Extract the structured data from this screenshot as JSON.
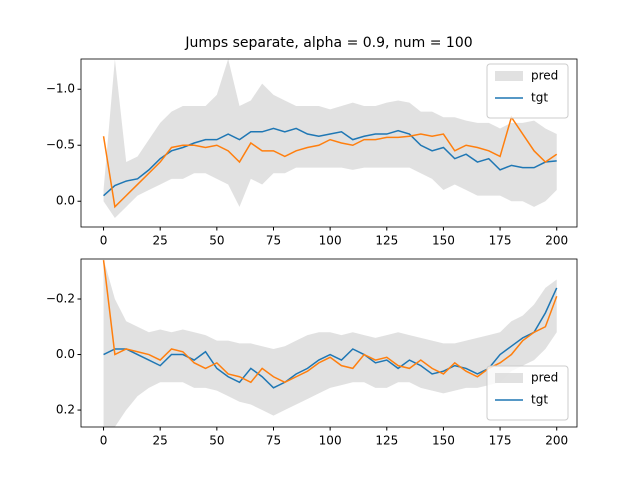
{
  "chart_data": [
    {
      "type": "line",
      "title": "Jumps separate, alpha = 0.9, num = 100",
      "invert_y": true,
      "legend": "upper right",
      "x": [
        0,
        5,
        10,
        15,
        20,
        25,
        30,
        35,
        40,
        45,
        50,
        55,
        60,
        65,
        70,
        75,
        80,
        85,
        90,
        95,
        100,
        105,
        110,
        115,
        120,
        125,
        130,
        135,
        140,
        145,
        150,
        155,
        160,
        165,
        170,
        175,
        180,
        185,
        190,
        195,
        200
      ],
      "xlim": [
        -9.95,
        208.95
      ],
      "xticks": [
        0,
        25,
        50,
        75,
        100,
        125,
        150,
        175,
        200
      ],
      "ylim": [
        -1.27,
        0.23
      ],
      "yticks": [
        {
          "value": -1.0,
          "label": "−1.0"
        },
        {
          "value": -0.5,
          "label": "−0.5"
        },
        {
          "value": 0.0,
          "label": "0.0"
        }
      ],
      "band": {
        "name": "pred",
        "color": "#d9d9d9",
        "lower": [
          -0.1,
          -1.27,
          -0.35,
          -0.4,
          -0.55,
          -0.7,
          -0.8,
          -0.85,
          -0.85,
          -0.85,
          -0.95,
          -1.27,
          -0.85,
          -0.9,
          -1.05,
          -0.95,
          -0.9,
          -0.85,
          -0.85,
          -0.85,
          -0.82,
          -0.85,
          -0.88,
          -0.85,
          -0.85,
          -0.88,
          -0.9,
          -0.88,
          -0.8,
          -0.8,
          -0.75,
          -0.75,
          -0.72,
          -0.7,
          -0.7,
          -0.65,
          -0.7,
          -0.7,
          -0.72,
          -0.65,
          -0.6
        ],
        "upper": [
          0.0,
          0.15,
          0.05,
          -0.05,
          -0.1,
          -0.15,
          -0.2,
          -0.2,
          -0.25,
          -0.25,
          -0.2,
          -0.15,
          0.05,
          -0.2,
          -0.15,
          -0.25,
          -0.25,
          -0.3,
          -0.3,
          -0.3,
          -0.3,
          -0.3,
          -0.28,
          -0.3,
          -0.3,
          -0.3,
          -0.3,
          -0.3,
          -0.25,
          -0.2,
          -0.1,
          -0.15,
          -0.1,
          -0.05,
          -0.05,
          -0.05,
          0.0,
          0.0,
          0.05,
          0.0,
          -0.1
        ]
      },
      "series": [
        {
          "name": "tgt",
          "color": "#1f77b4",
          "values": [
            -0.05,
            -0.14,
            -0.18,
            -0.2,
            -0.28,
            -0.38,
            -0.45,
            -0.48,
            -0.52,
            -0.55,
            -0.55,
            -0.6,
            -0.55,
            -0.62,
            -0.62,
            -0.65,
            -0.62,
            -0.65,
            -0.6,
            -0.58,
            -0.6,
            -0.62,
            -0.55,
            -0.58,
            -0.6,
            -0.6,
            -0.63,
            -0.6,
            -0.5,
            -0.45,
            -0.48,
            -0.38,
            -0.42,
            -0.35,
            -0.38,
            -0.28,
            -0.32,
            -0.3,
            -0.3,
            -0.35,
            -0.36
          ]
        },
        {
          "color": "#ff7f0e",
          "values": [
            -0.58,
            0.05,
            -0.05,
            -0.15,
            -0.25,
            -0.35,
            -0.48,
            -0.5,
            -0.5,
            -0.48,
            -0.5,
            -0.45,
            -0.35,
            -0.52,
            -0.45,
            -0.45,
            -0.4,
            -0.45,
            -0.48,
            -0.5,
            -0.55,
            -0.52,
            -0.5,
            -0.55,
            -0.55,
            -0.57,
            -0.57,
            -0.58,
            -0.6,
            -0.58,
            -0.6,
            -0.45,
            -0.5,
            -0.48,
            -0.45,
            -0.4,
            -0.75,
            -0.6,
            -0.45,
            -0.35,
            -0.42
          ]
        }
      ]
    },
    {
      "type": "line",
      "invert_y": true,
      "legend": "lower right",
      "x": [
        0,
        5,
        10,
        15,
        20,
        25,
        30,
        35,
        40,
        45,
        50,
        55,
        60,
        65,
        70,
        75,
        80,
        85,
        90,
        95,
        100,
        105,
        110,
        115,
        120,
        125,
        130,
        135,
        140,
        145,
        150,
        155,
        160,
        165,
        170,
        175,
        180,
        185,
        190,
        195,
        200
      ],
      "xlim": [
        -9.95,
        208.95
      ],
      "xticks": [
        0,
        25,
        50,
        75,
        100,
        125,
        150,
        175,
        200
      ],
      "ylim": [
        -0.344,
        0.261
      ],
      "yticks": [
        {
          "value": -0.2,
          "label": "−0.2"
        },
        {
          "value": 0.0,
          "label": "0.0"
        },
        {
          "value": 0.2,
          "label": "0.2"
        }
      ],
      "band": {
        "name": "pred",
        "color": "#d9d9d9",
        "lower": [
          -0.344,
          -0.2,
          -0.12,
          -0.1,
          -0.08,
          -0.09,
          -0.08,
          -0.09,
          -0.08,
          -0.07,
          -0.05,
          -0.05,
          -0.04,
          -0.04,
          -0.03,
          -0.02,
          -0.03,
          -0.05,
          -0.07,
          -0.08,
          -0.08,
          -0.07,
          -0.08,
          -0.07,
          -0.06,
          -0.07,
          -0.08,
          -0.07,
          -0.06,
          -0.05,
          -0.04,
          -0.04,
          -0.05,
          -0.06,
          -0.07,
          -0.08,
          -0.12,
          -0.14,
          -0.18,
          -0.24,
          -0.27
        ],
        "upper": [
          0.261,
          0.261,
          0.2,
          0.15,
          0.12,
          0.1,
          0.1,
          0.1,
          0.12,
          0.12,
          0.13,
          0.15,
          0.17,
          0.18,
          0.2,
          0.22,
          0.2,
          0.18,
          0.16,
          0.14,
          0.12,
          0.11,
          0.1,
          0.1,
          0.12,
          0.12,
          0.1,
          0.1,
          0.12,
          0.13,
          0.14,
          0.13,
          0.12,
          0.12,
          0.11,
          0.1,
          0.06,
          0.04,
          0.02,
          -0.02,
          -0.08
        ]
      },
      "series": [
        {
          "name": "tgt",
          "color": "#1f77b4",
          "values": [
            0.0,
            -0.02,
            -0.02,
            0.0,
            0.02,
            0.04,
            0.0,
            0.0,
            0.02,
            -0.01,
            0.05,
            0.08,
            0.1,
            0.05,
            0.08,
            0.12,
            0.1,
            0.07,
            0.05,
            0.02,
            0.0,
            0.02,
            -0.02,
            0.0,
            0.03,
            0.02,
            0.05,
            0.02,
            0.04,
            0.07,
            0.06,
            0.04,
            0.05,
            0.07,
            0.05,
            0.0,
            -0.03,
            -0.06,
            -0.08,
            -0.15,
            -0.24
          ]
        },
        {
          "color": "#ff7f0e",
          "values": [
            -0.34,
            0.0,
            -0.02,
            -0.01,
            0.0,
            0.02,
            -0.02,
            -0.01,
            0.03,
            0.05,
            0.03,
            0.07,
            0.08,
            0.1,
            0.05,
            0.08,
            0.1,
            0.08,
            0.06,
            0.03,
            0.01,
            0.04,
            0.05,
            0.0,
            0.02,
            0.01,
            0.04,
            0.05,
            0.02,
            0.05,
            0.07,
            0.03,
            0.06,
            0.08,
            0.05,
            0.03,
            0.0,
            -0.05,
            -0.08,
            -0.1,
            -0.21
          ]
        }
      ]
    }
  ]
}
